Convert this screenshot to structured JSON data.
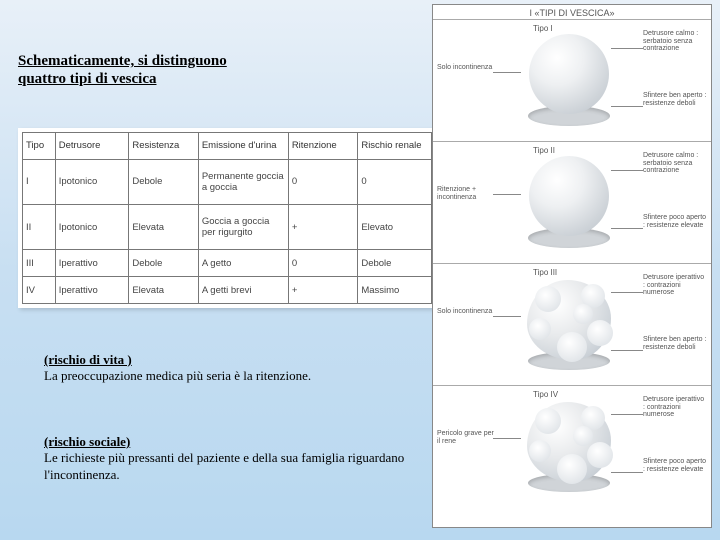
{
  "title_line1": "Schematicamente,  si distinguono",
  "title_line2": "quattro tipi di vescica",
  "table": {
    "headers": [
      "Tipo",
      "Detrusore",
      "Resistenza",
      "Emissione d'urina",
      "Ritenzione",
      "Rischio renale"
    ],
    "rows": [
      [
        "I",
        "Ipotonico",
        "Debole",
        "Permanente goccia a goccia",
        "0",
        "0"
      ],
      [
        "II",
        "Ipotonico",
        "Elevata",
        "Goccia a goccia per rigurgito",
        "+",
        "Elevato"
      ],
      [
        "III",
        "Iperattivo",
        "Debole",
        "A getto",
        "0",
        "Debole"
      ],
      [
        "IV",
        "Iperattivo",
        "Elevata",
        "A getti brevi",
        "+",
        "Massimo"
      ]
    ],
    "col_widths": [
      "8%",
      "18%",
      "17%",
      "22%",
      "17%",
      "18%"
    ]
  },
  "note1": {
    "head": "(rischio di vita )",
    "body": "La preoccupazione  medica più  seria è la ritenzione."
  },
  "note2": {
    "head": "(rischio  sociale)",
    "body": " Le richieste  più pressanti del paziente e della sua famiglia riguardano l'incontinenza."
  },
  "right": {
    "title": "I «TIPI DI VESCICA»",
    "cells": [
      {
        "tipo": "Tipo I",
        "left": "Solo incontinenza",
        "right_top": "Detrusore calmo : serbatoio senza contrazione",
        "right_bot": "Sfintere ben aperto : resistenze deboli"
      },
      {
        "tipo": "Tipo II",
        "left": "Ritenzione + incontinenza",
        "right_top": "Detrusore calmo : serbatoio senza contrazione",
        "right_bot": "Sfintere poco aperto : resistenze elevate"
      },
      {
        "tipo": "Tipo III",
        "left": "Solo incontinenza",
        "right_top": "Detrusore iperattivo : contrazioni numerose",
        "right_bot": "Sfintere ben aperto : resistenze deboli"
      },
      {
        "tipo": "Tipo IV",
        "left": "Pericolo grave per il rene",
        "right_top": "Detrusore iperattivo : contrazioni numerose",
        "right_bot": "Sfintere poco aperto : resistenze elevate"
      }
    ]
  },
  "colors": {
    "bg_top": "#e8f0f8",
    "bg_bot": "#b8d8f0",
    "table_border": "#777777",
    "text": "#000000"
  }
}
